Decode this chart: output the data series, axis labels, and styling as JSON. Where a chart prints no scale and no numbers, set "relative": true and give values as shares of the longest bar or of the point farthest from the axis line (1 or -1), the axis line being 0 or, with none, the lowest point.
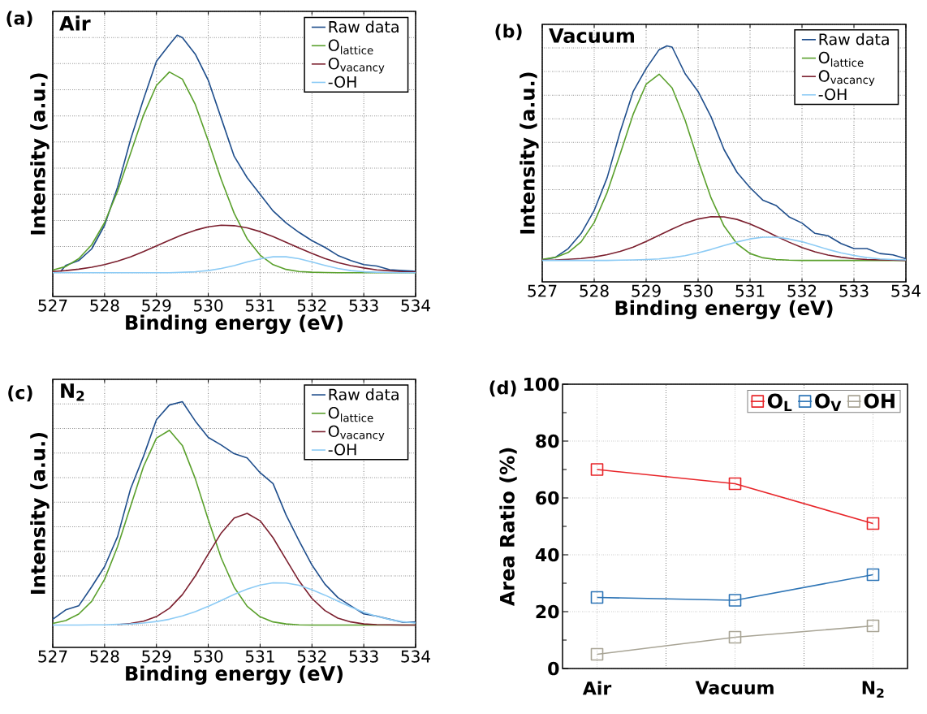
{
  "chart_data": [
    {
      "type": "line",
      "relative": true,
      "title": "Air",
      "annotations": [
        "(a)"
      ],
      "xlabel": "Binding energy (eV)",
      "ylabel": "Intensity (a.u.)",
      "xlim": [
        527,
        534
      ],
      "xticks": [
        527,
        528,
        529,
        530,
        531,
        532,
        533,
        534
      ],
      "grid": true,
      "legend": "top right",
      "x": [
        527,
        527.25,
        527.5,
        527.75,
        528,
        528.25,
        528.5,
        528.75,
        529,
        529.25,
        529.5,
        529.75,
        530,
        530.25,
        530.5,
        530.75,
        531,
        531.25,
        531.5,
        531.75,
        532,
        532.25,
        532.5,
        532.75,
        533,
        533.25,
        533.5,
        533.75,
        534
      ],
      "series": [
        {
          "name": "Raw data",
          "color": "#1f4e8c",
          "x": [
            527.15,
            527.25,
            527.5,
            527.75,
            528,
            528.25,
            528.5,
            528.75,
            529,
            529.25,
            529.4,
            529.5,
            529.75,
            530,
            530.25,
            530.5,
            530.75,
            531,
            531.25,
            531.5,
            531.75,
            532,
            532.25,
            532.5,
            532.75,
            533,
            533.25,
            533.5,
            533.75,
            534
          ],
          "values": [
            0.005,
            0.031,
            0.051,
            0.1,
            0.2,
            0.36,
            0.56,
            0.73,
            0.89,
            0.96,
            1.0,
            0.99,
            0.92,
            0.81,
            0.65,
            0.49,
            0.4,
            0.33,
            0.26,
            0.21,
            0.17,
            0.135,
            0.107,
            0.073,
            0.051,
            0.034,
            0.028,
            0.013,
            0.009,
            0.006
          ]
        },
        {
          "name": "O$_{lattice}$",
          "color": "#5aa02c",
          "values": [
            0.011,
            0.026,
            0.059,
            0.117,
            0.211,
            0.343,
            0.502,
            0.663,
            0.788,
            0.845,
            0.815,
            0.708,
            0.555,
            0.392,
            0.25,
            0.143,
            0.074,
            0.034,
            0.014,
            0.005,
            0.002,
            0.001,
            0,
            0,
            0,
            0,
            0,
            0,
            0
          ]
        },
        {
          "name": "O$_{vacancy}$",
          "color": "#7b1f2e",
          "values": [
            0.005,
            0.009,
            0.015,
            0.023,
            0.034,
            0.049,
            0.067,
            0.089,
            0.113,
            0.137,
            0.16,
            0.179,
            0.193,
            0.2,
            0.198,
            0.189,
            0.173,
            0.152,
            0.128,
            0.104,
            0.081,
            0.06,
            0.043,
            0.03,
            0.02,
            0.012,
            0.008,
            0.004,
            0.003
          ]
        },
        {
          "name": "-OH",
          "color": "#8ccbf5",
          "values": [
            0,
            0,
            0,
            0,
            0,
            0,
            0,
            0,
            0,
            0,
            0.002,
            0.004,
            0.009,
            0.018,
            0.03,
            0.045,
            0.058,
            0.067,
            0.067,
            0.059,
            0.045,
            0.031,
            0.018,
            0.009,
            0.004,
            0.002,
            0.001,
            0,
            0
          ]
        }
      ]
    },
    {
      "type": "line",
      "relative": true,
      "title": "Vacuum",
      "annotations": [
        "(b)"
      ],
      "xlabel": "Binding energy (eV)",
      "ylabel": "Intensity (a.u.)",
      "xlim": [
        527,
        534
      ],
      "xticks": [
        527,
        528,
        529,
        530,
        531,
        532,
        533,
        534
      ],
      "grid": true,
      "legend": "top right",
      "x": [
        527,
        527.25,
        527.5,
        527.75,
        528,
        528.25,
        528.5,
        528.75,
        529,
        529.25,
        529.5,
        529.75,
        530,
        530.25,
        530.5,
        530.75,
        531,
        531.25,
        531.5,
        531.75,
        532,
        532.25,
        532.5,
        532.75,
        533,
        533.25,
        533.5,
        533.75,
        534
      ],
      "series": [
        {
          "name": "Raw data",
          "color": "#1f4e8c",
          "x": [
            527,
            527.25,
            527.5,
            527.75,
            528,
            528.25,
            528.5,
            528.75,
            529,
            529.25,
            529.4,
            529.5,
            529.75,
            530,
            530.25,
            530.5,
            530.75,
            531,
            531.25,
            531.5,
            531.75,
            532,
            532.25,
            532.5,
            532.75,
            533,
            533.25,
            533.5,
            533.75,
            534
          ],
          "values": [
            0.002,
            0.014,
            0.055,
            0.126,
            0.233,
            0.386,
            0.599,
            0.787,
            0.894,
            0.982,
            1.0,
            0.994,
            0.87,
            0.787,
            0.669,
            0.516,
            0.41,
            0.339,
            0.28,
            0.256,
            0.203,
            0.174,
            0.126,
            0.115,
            0.079,
            0.055,
            0.055,
            0.032,
            0.026,
            0.008
          ]
        },
        {
          "name": "O$_{lattice}$",
          "color": "#5aa02c",
          "values": [
            0.005,
            0.014,
            0.037,
            0.087,
            0.177,
            0.317,
            0.496,
            0.681,
            0.821,
            0.868,
            0.804,
            0.653,
            0.465,
            0.291,
            0.16,
            0.077,
            0.032,
            0.012,
            0.004,
            0.001,
            0,
            0,
            0,
            0,
            0,
            0,
            0,
            0,
            0
          ]
        },
        {
          "name": "O$_{vacancy}$",
          "color": "#7b1f2e",
          "values": [
            0.001,
            0.002,
            0.005,
            0.009,
            0.016,
            0.027,
            0.042,
            0.062,
            0.088,
            0.117,
            0.146,
            0.173,
            0.193,
            0.204,
            0.203,
            0.191,
            0.17,
            0.143,
            0.113,
            0.085,
            0.06,
            0.04,
            0.025,
            0.015,
            0.008,
            0.004,
            0.002,
            0.001,
            0
          ]
        },
        {
          "name": "-OH",
          "color": "#8ccbf5",
          "values": [
            0,
            0,
            0,
            0,
            0,
            0,
            0.001,
            0.002,
            0.004,
            0.007,
            0.013,
            0.022,
            0.035,
            0.051,
            0.069,
            0.086,
            0.1,
            0.108,
            0.108,
            0.1,
            0.087,
            0.069,
            0.051,
            0.035,
            0.023,
            0.013,
            0.007,
            0.004,
            0.002
          ]
        }
      ]
    },
    {
      "type": "line",
      "relative": true,
      "title": "N$_{2}$",
      "annotations": [
        "(c)"
      ],
      "xlabel": "Binding energy (eV)",
      "ylabel": "Intensity (a.u.)",
      "xlim": [
        527,
        534
      ],
      "xticks": [
        527,
        528,
        529,
        530,
        531,
        532,
        533,
        534
      ],
      "grid": true,
      "legend": "top right",
      "x": [
        527,
        527.25,
        527.5,
        527.75,
        528,
        528.25,
        528.5,
        528.75,
        529,
        529.25,
        529.5,
        529.75,
        530,
        530.25,
        530.5,
        530.75,
        531,
        531.25,
        531.5,
        531.75,
        532,
        532.25,
        532.5,
        532.75,
        533,
        533.25,
        533.5,
        533.75,
        534
      ],
      "series": [
        {
          "name": "Raw data",
          "color": "#1f4e8c",
          "values": [
            0.026,
            0.068,
            0.086,
            0.171,
            0.262,
            0.396,
            0.609,
            0.755,
            0.919,
            0.985,
            1.0,
            0.913,
            0.84,
            0.806,
            0.767,
            0.748,
            0.682,
            0.633,
            0.493,
            0.378,
            0.269,
            0.183,
            0.123,
            0.086,
            0.05,
            0.04,
            0.026,
            0.013,
            0.013
          ]
        },
        {
          "name": "O$_{lattice}$",
          "color": "#5aa02c",
          "values": [
            0.007,
            0.02,
            0.049,
            0.106,
            0.205,
            0.351,
            0.531,
            0.709,
            0.837,
            0.872,
            0.804,
            0.655,
            0.472,
            0.3,
            0.169,
            0.084,
            0.037,
            0.014,
            0.005,
            0.001,
            0,
            0,
            0,
            0,
            0,
            0,
            0,
            0,
            0
          ]
        },
        {
          "name": "O$_{vacancy}$",
          "color": "#7b1f2e",
          "values": [
            null,
            null,
            null,
            null,
            null,
            0.002,
            0.007,
            0.017,
            0.038,
            0.075,
            0.136,
            0.22,
            0.318,
            0.412,
            0.479,
            0.5,
            0.467,
            0.391,
            0.294,
            0.198,
            0.119,
            0.065,
            0.031,
            0.014,
            0.005,
            0.002,
            0.001,
            0,
            0
          ]
        },
        {
          "name": "-OH",
          "color": "#8ccbf5",
          "values": [
            0,
            0,
            0,
            0.001,
            0.001,
            0.003,
            0.005,
            0.009,
            0.016,
            0.026,
            0.041,
            0.06,
            0.084,
            0.11,
            0.137,
            0.161,
            0.179,
            0.189,
            0.188,
            0.178,
            0.158,
            0.134,
            0.107,
            0.081,
            0.057,
            0.039,
            0.025,
            0.015,
            0.009
          ]
        }
      ]
    },
    {
      "type": "line",
      "annotations": [
        "(d)"
      ],
      "ylabel": "Area Ratio (%)",
      "categories": [
        "Air",
        "Vacuum",
        "N$_{2}$"
      ],
      "ylim": [
        0,
        100
      ],
      "yticks": [
        0,
        {
          "value": 10,
          "label": null
        },
        20,
        {
          "value": 30,
          "label": null
        },
        40,
        {
          "value": 50,
          "label": null
        },
        60,
        {
          "value": 70,
          "label": null
        },
        80,
        {
          "value": 90,
          "label": null
        },
        100
      ],
      "grid": true,
      "legend": "top right",
      "marker": "square",
      "line_style": "solid",
      "series": [
        {
          "name": "O$_{L}$",
          "color": "#e8262a",
          "values": [
            70,
            65,
            51
          ]
        },
        {
          "name": "O$_{V}$",
          "color": "#2e75b6",
          "values": [
            25,
            24,
            33
          ]
        },
        {
          "name": "OH",
          "color": "#a8a495",
          "values": [
            5,
            11,
            15
          ]
        }
      ]
    }
  ]
}
